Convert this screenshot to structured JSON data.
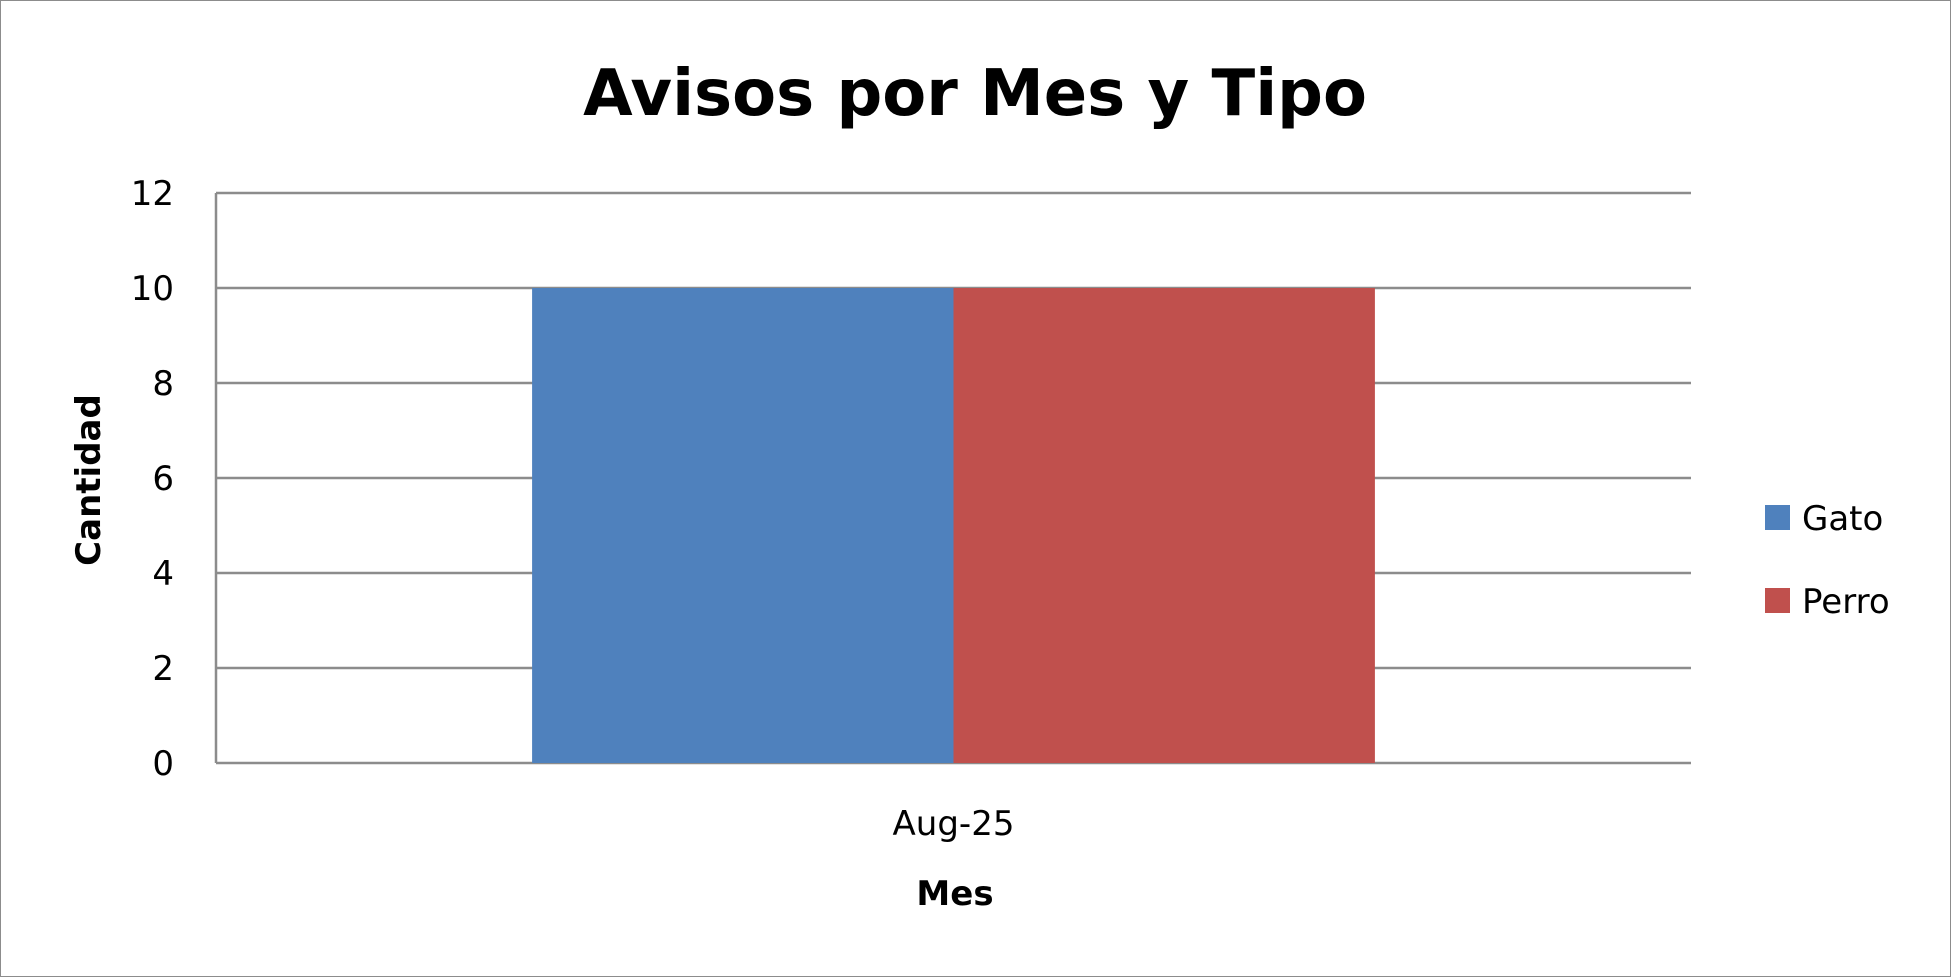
{
  "chart_data": {
    "type": "bar",
    "title": "Avisos por Mes y Tipo",
    "xlabel": "Mes",
    "ylabel": "Cantidad",
    "categories": [
      "Aug-25"
    ],
    "series": [
      {
        "name": "Gato",
        "values": [
          10
        ],
        "color": "#4f81bd"
      },
      {
        "name": "Perro",
        "values": [
          10
        ],
        "color": "#c0504d"
      }
    ],
    "ylim": [
      0,
      12
    ],
    "yticks": [
      0,
      2,
      4,
      6,
      8,
      10,
      12
    ],
    "grid": true,
    "legend_position": "right"
  }
}
